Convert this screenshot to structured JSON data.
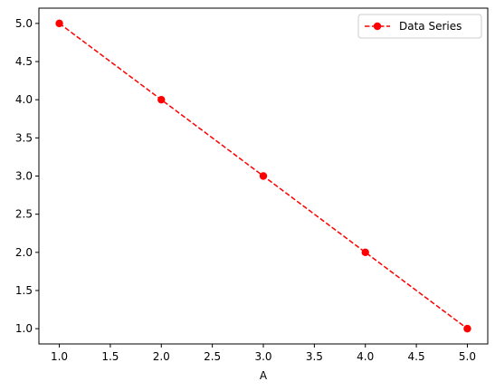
{
  "chart_data": {
    "type": "line",
    "title": "",
    "xlabel": "A",
    "ylabel": "",
    "xlim": [
      0.8,
      5.2
    ],
    "ylim": [
      0.8,
      5.2
    ],
    "xticks": [
      "1.0",
      "1.5",
      "2.0",
      "2.5",
      "3.0",
      "3.5",
      "4.0",
      "4.5",
      "5.0"
    ],
    "yticks": [
      "1.0",
      "1.5",
      "2.0",
      "2.5",
      "3.0",
      "3.5",
      "4.0",
      "4.5",
      "5.0"
    ],
    "grid": false,
    "legend_position": "top-right",
    "series": [
      {
        "name": "Data Series",
        "color": "#ff0000",
        "line_style": "dashed",
        "marker": "circle",
        "x": [
          1,
          2,
          3,
          4,
          5
        ],
        "y": [
          5,
          4,
          3,
          2,
          1
        ]
      }
    ]
  }
}
